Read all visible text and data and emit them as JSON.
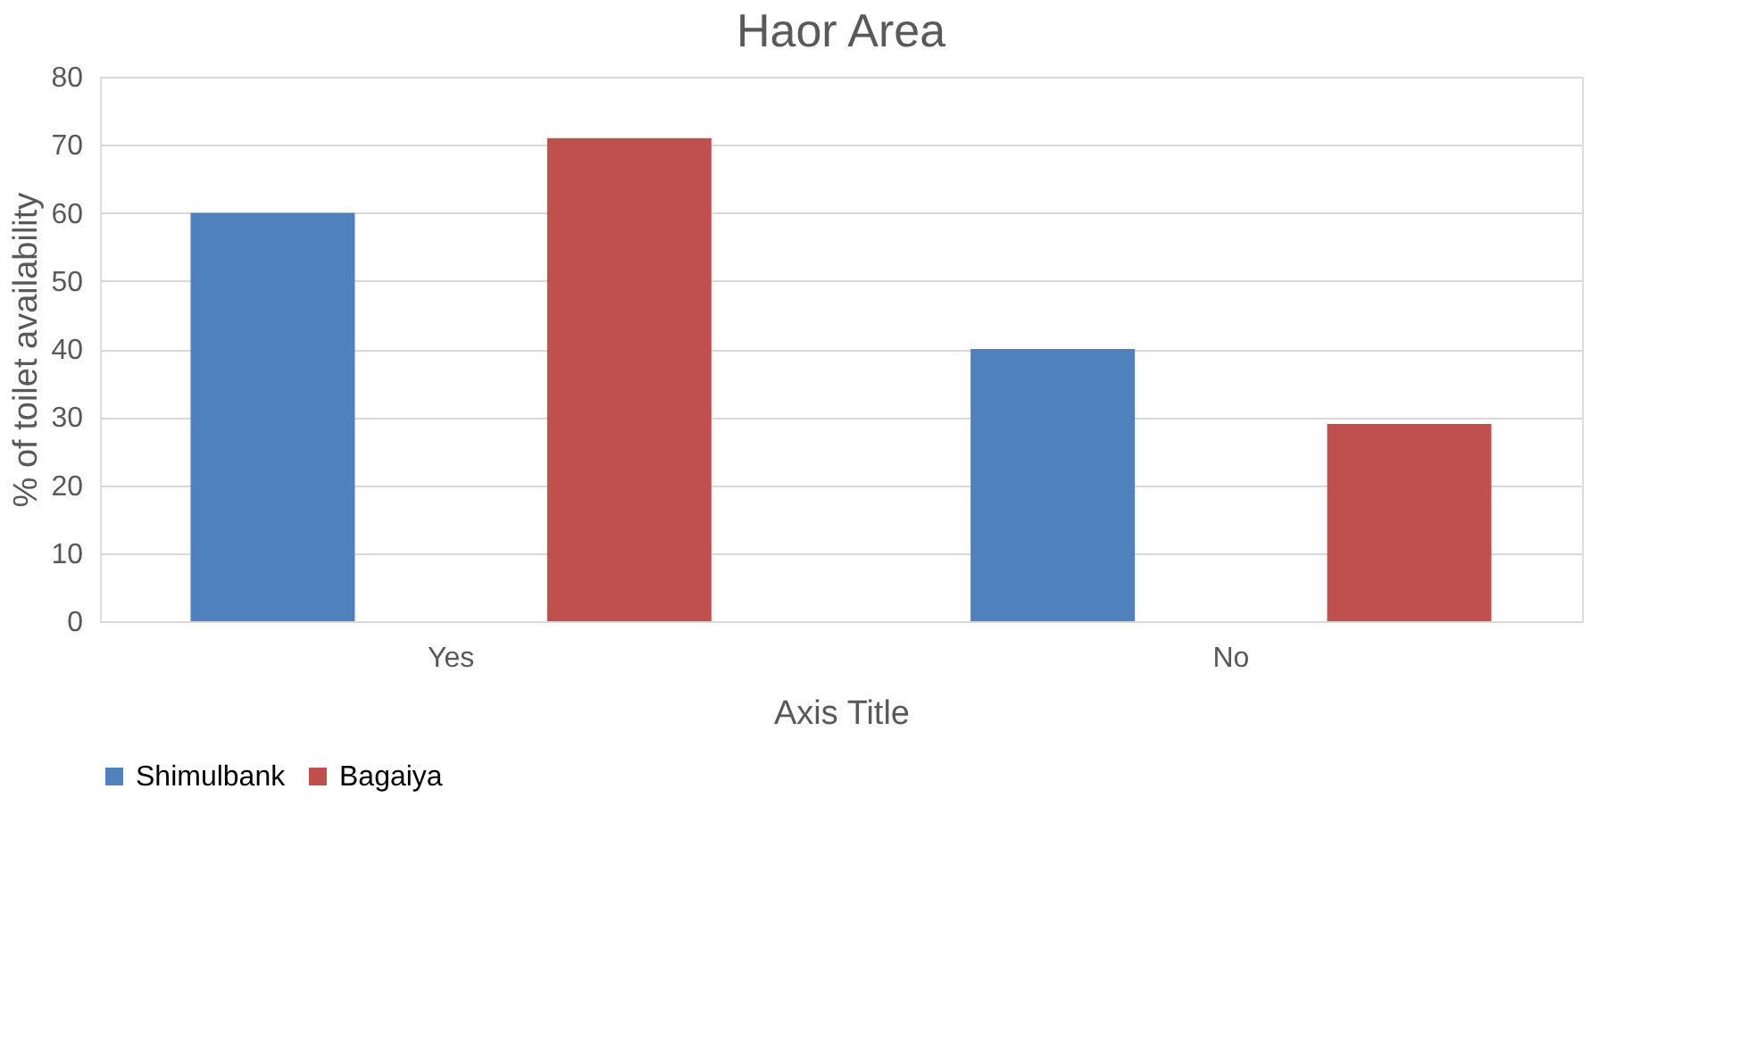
{
  "chart_data": {
    "type": "bar",
    "title": "Haor Area",
    "xlabel": "Axis Title",
    "ylabel": "% of toilet availability",
    "categories": [
      "Yes",
      "No"
    ],
    "series": [
      {
        "name": "Shimulbank",
        "color": "#4f81bd",
        "values": [
          60,
          40
        ]
      },
      {
        "name": "Bagaiya",
        "color": "#c0504d",
        "values": [
          71,
          29
        ]
      }
    ],
    "ylim": [
      0,
      80
    ],
    "yticks": [
      0,
      10,
      20,
      30,
      40,
      50,
      60,
      70,
      80
    ],
    "grid": "y",
    "legend": "bottom"
  }
}
